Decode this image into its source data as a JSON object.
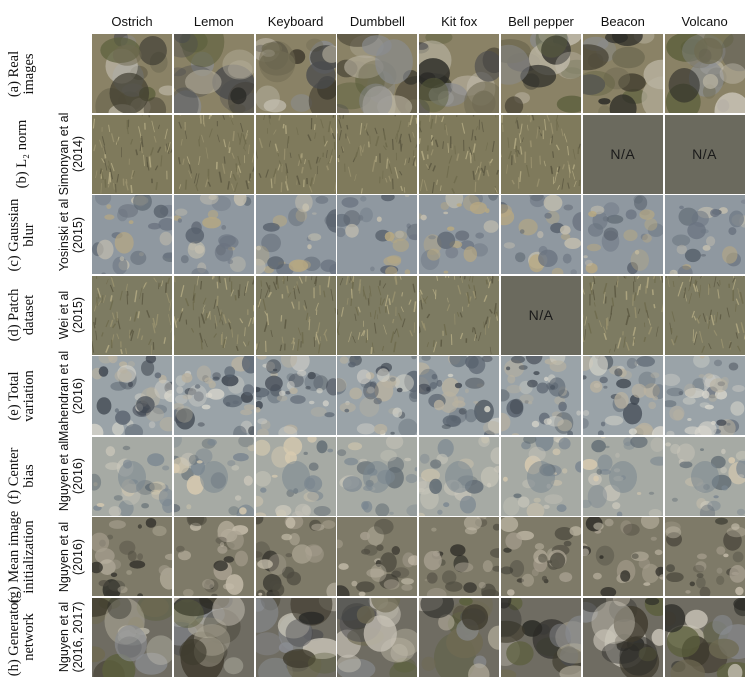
{
  "columns": [
    "Ostrich",
    "Lemon",
    "Keyboard",
    "Dumbbell",
    "Kit fox",
    "Bell pepper",
    "Beacon",
    "Volcano"
  ],
  "rows": [
    {
      "label_lines": [
        "(a) Real",
        "images"
      ],
      "citation_lines": [],
      "bg": "#8a8266",
      "na_cols": [],
      "kind": "real"
    },
    {
      "label_lines": [
        "(b) L₂ norm"
      ],
      "citation_lines": [
        "Simonyan et al",
        "(2014)"
      ],
      "bg": "#7f7a5c",
      "na_cols": [
        6,
        7
      ],
      "kind": "grass"
    },
    {
      "label_lines": [
        "(c) Gaussian",
        "blur"
      ],
      "citation_lines": [
        "Yosinski et al",
        "(2015)"
      ],
      "bg": "#8f98a0",
      "na_cols": [],
      "kind": "blob"
    },
    {
      "label_lines": [
        "(d) Patch",
        "dataset"
      ],
      "citation_lines": [
        "Wei et al",
        "(2015)"
      ],
      "bg": "#7d7b62",
      "na_cols": [
        5
      ],
      "kind": "grass"
    },
    {
      "label_lines": [
        "(e) Total",
        "variation"
      ],
      "citation_lines": [
        "Mahendran et al",
        "(2016)"
      ],
      "bg": "#9aa3a8",
      "na_cols": [],
      "kind": "rich"
    },
    {
      "label_lines": [
        "(f) Center",
        "bias"
      ],
      "citation_lines": [
        "Nguyen et al",
        "(2016)"
      ],
      "bg": "#a6aaa4",
      "na_cols": [],
      "kind": "center"
    },
    {
      "label_lines": [
        "(g) Mean image",
        "initialization"
      ],
      "citation_lines": [
        "Nguyen et al",
        "(2016)"
      ],
      "bg": "#7e7a68",
      "na_cols": [],
      "kind": "mean"
    },
    {
      "label_lines": [
        "(h) Generator",
        "network"
      ],
      "citation_lines": [
        "Nguyen et al",
        "(2016, 2017)"
      ],
      "bg": "#6f6c62",
      "na_cols": [],
      "kind": "real"
    }
  ],
  "na_text": "N/A",
  "palette": {
    "real": [
      "#6f6a52",
      "#3f3b2e",
      "#b8b2a0",
      "#2a2a26",
      "#c9c4b8",
      "#5b5f3c",
      "#8a8d92",
      "#4a4b4e"
    ],
    "grass": [
      "#9c9470",
      "#5a5640",
      "#b7ae86",
      "#6e6a4c"
    ],
    "blob": [
      "#c8c2b0",
      "#6a7380",
      "#b9a980",
      "#57606b"
    ],
    "rich": [
      "#d8d6cc",
      "#5a6470",
      "#b9b2a0",
      "#3f4650"
    ],
    "center": [
      "#c9c6ba",
      "#7a8690",
      "#d8cbb0",
      "#5f6a72"
    ],
    "mean": [
      "#4e4b40",
      "#a8a090",
      "#2f2e28",
      "#c4bcaa"
    ]
  }
}
